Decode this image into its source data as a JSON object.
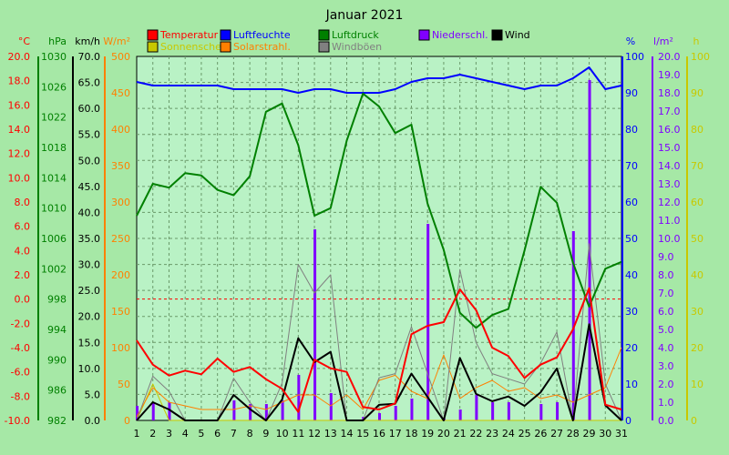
{
  "chart_data": {
    "type": "line",
    "title": "Januar 2021",
    "x": [
      1,
      2,
      3,
      4,
      5,
      6,
      7,
      8,
      9,
      10,
      11,
      12,
      13,
      14,
      15,
      16,
      17,
      18,
      19,
      20,
      21,
      22,
      23,
      24,
      25,
      26,
      27,
      28,
      29,
      30,
      31
    ],
    "axes": {
      "temp": {
        "unit": "°C",
        "min": -10,
        "max": 20,
        "ticks": [
          "-10.0",
          "-8.0",
          "-6.0",
          "-4.0",
          "-2.0",
          "0.0",
          "2.0",
          "4.0",
          "6.0",
          "8.0",
          "10.0",
          "12.0",
          "14.0",
          "16.0",
          "18.0",
          "20.0"
        ],
        "color": "#ff0000"
      },
      "press": {
        "unit": "hPa",
        "min": 982,
        "max": 1030,
        "ticks": [
          "982",
          "986",
          "990",
          "994",
          "998",
          "1002",
          "1006",
          "1010",
          "1014",
          "1018",
          "1022",
          "1026",
          "1030"
        ],
        "color": "#008000"
      },
      "wind": {
        "unit": "km/h",
        "min": 0,
        "max": 70,
        "ticks": [
          "0.0",
          "5.0",
          "10.0",
          "15.0",
          "20.0",
          "25.0",
          "30.0",
          "35.0",
          "40.0",
          "45.0",
          "50.0",
          "55.0",
          "60.0",
          "65.0",
          "70.0"
        ],
        "color": "#000000"
      },
      "solar": {
        "unit": "W/m²",
        "min": 0,
        "max": 500,
        "ticks": [
          "0",
          "50",
          "100",
          "150",
          "200",
          "250",
          "300",
          "350",
          "400",
          "450",
          "500"
        ],
        "color": "#ff8000"
      },
      "hum": {
        "unit": "%",
        "min": 0,
        "max": 100,
        "ticks": [
          "0",
          "10",
          "20",
          "30",
          "40",
          "50",
          "60",
          "70",
          "80",
          "90",
          "100"
        ],
        "color": "#0000ff"
      },
      "rain": {
        "unit": "l/m²",
        "min": 0,
        "max": 20,
        "ticks": [
          "0.0",
          "1.0",
          "2.0",
          "3.0",
          "4.0",
          "5.0",
          "6.0",
          "7.0",
          "8.0",
          "9.0",
          "10.0",
          "11.0",
          "12.0",
          "13.0",
          "14.0",
          "15.0",
          "16.0",
          "17.0",
          "18.0",
          "19.0",
          "20.0"
        ],
        "color": "#8000ff"
      },
      "sun": {
        "unit": "h",
        "min": 0,
        "max": 100,
        "ticks": [
          "0",
          "10",
          "20",
          "30",
          "40",
          "50",
          "60",
          "70",
          "80",
          "90",
          "100"
        ],
        "color": "#c8c800"
      }
    },
    "legend": [
      {
        "name": "Temperatur",
        "color": "#ff0000"
      },
      {
        "name": "Luftfeuchte",
        "color": "#0000ff"
      },
      {
        "name": "Luftdruck",
        "color": "#008000"
      },
      {
        "name": "Niederschl.",
        "color": "#8000ff"
      },
      {
        "name": "Wind",
        "color": "#000000"
      },
      {
        "name": "Sonnenschein",
        "color": "#c8c800"
      },
      {
        "name": "Solarstrahl.",
        "color": "#ff8000"
      },
      {
        "name": "Windböen",
        "color": "#808080"
      }
    ],
    "series": [
      {
        "name": "Temperatur",
        "axis": "temp",
        "color": "#ff0000",
        "values": [
          -3.4,
          -5.4,
          -6.3,
          -5.9,
          -6.2,
          -4.9,
          -6.0,
          -5.6,
          -6.6,
          -7.4,
          -9.3,
          -5.0,
          -5.7,
          -6.0,
          -8.9,
          -9.1,
          -8.6,
          -2.9,
          -2.2,
          -1.9,
          0.8,
          -0.9,
          -4.0,
          -4.7,
          -6.5,
          -5.4,
          -4.8,
          -2.5,
          0.9,
          -8.7,
          -9.1
        ]
      },
      {
        "name": "Luftdruck",
        "axis": "press",
        "color": "#008000",
        "values": [
          1009.0,
          1013.2,
          1012.7,
          1014.6,
          1014.3,
          1012.4,
          1011.7,
          1014.2,
          1022.7,
          1023.8,
          1018.3,
          1009.0,
          1010.0,
          1018.9,
          1025.1,
          1023.4,
          1019.9,
          1021.0,
          1010.6,
          1004.5,
          996.2,
          994.2,
          995.9,
          996.7,
          1004.4,
          1012.8,
          1010.7,
          1002.8,
          997.0,
          1002.0,
          1002.9
        ]
      },
      {
        "name": "Luftfeuchte",
        "axis": "hum",
        "color": "#0000ff",
        "values": [
          93,
          92,
          92,
          92,
          92,
          92,
          91,
          91,
          91,
          91,
          90,
          91,
          91,
          90,
          90,
          90,
          91,
          93,
          94,
          94,
          95,
          94,
          93,
          92,
          91,
          92,
          92,
          94,
          97,
          91,
          92
        ]
      },
      {
        "name": "Wind",
        "axis": "wind",
        "color": "#000000",
        "values": [
          0.0,
          3.5,
          2.1,
          0.0,
          0.0,
          0.0,
          4.9,
          2.2,
          0.0,
          4.0,
          15.8,
          11.2,
          13.2,
          0.0,
          0.0,
          3.0,
          3.2,
          9.0,
          4.5,
          0.0,
          12.0,
          5.1,
          3.7,
          4.6,
          2.8,
          5.4,
          10.0,
          0.0,
          18.5,
          2.9,
          0.0
        ]
      },
      {
        "name": "Windböen",
        "axis": "wind",
        "color": "#808080",
        "values": [
          0.0,
          8.5,
          5.6,
          0.0,
          0.0,
          0.0,
          8.1,
          3.5,
          0.0,
          7.2,
          30.0,
          24.5,
          28.0,
          0.0,
          0.0,
          8.2,
          9.0,
          18.0,
          9.0,
          0.0,
          29.0,
          15.0,
          9.0,
          8.0,
          7.0,
          11.0,
          17.0,
          0.0,
          34.0,
          7.0,
          0.0
        ]
      },
      {
        "name": "Solarstrahl.",
        "axis": "solar",
        "color": "#ff8000",
        "values": [
          5,
          45,
          25,
          20,
          15,
          15,
          15,
          20,
          15,
          25,
          35,
          35,
          20,
          35,
          15,
          55,
          62,
          40,
          30,
          90,
          30,
          45,
          55,
          40,
          45,
          30,
          35,
          25,
          35,
          45,
          100
        ]
      },
      {
        "name": "Sonnenschein",
        "axis": "sun",
        "color": "#c8c800",
        "values": [
          0,
          10,
          0,
          0,
          0,
          0,
          0,
          0,
          0,
          0,
          0,
          0,
          0,
          0,
          0,
          0,
          0,
          0,
          0,
          0,
          0,
          0,
          0,
          0,
          0,
          0,
          0,
          0,
          0,
          0,
          0
        ]
      },
      {
        "name": "Niederschl.",
        "axis": "rain",
        "type": "bar",
        "color": "#8000ff",
        "values": [
          0.8,
          1.0,
          1.0,
          0,
          0,
          0,
          1.1,
          0.9,
          0.9,
          1.1,
          2.5,
          10.5,
          1.5,
          0,
          0.2,
          0.4,
          0.8,
          1.2,
          10.8,
          0.1,
          0.6,
          1.4,
          1.0,
          1.0,
          0,
          0.9,
          1.0,
          10.4,
          18.7,
          0,
          0
        ]
      }
    ]
  }
}
